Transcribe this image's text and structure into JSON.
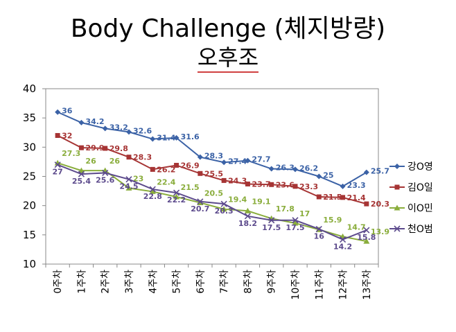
{
  "chart_data": {
    "type": "line",
    "title": "Body Challenge (체지방량)",
    "subtitle": "오후조",
    "categories": [
      "0주차",
      "1주차",
      "2주차",
      "3주차",
      "4주차",
      "5주차",
      "6주차",
      "7주차",
      "8주차",
      "9주차",
      "10주차",
      "11주차",
      "12주차",
      "13주차"
    ],
    "ylim": [
      10,
      40
    ],
    "yticks": [
      10,
      15,
      20,
      25,
      30,
      35,
      40
    ],
    "series": [
      {
        "name": "강O영",
        "color": "#3b62a6",
        "marker": "diamond",
        "values": [
          36,
          34.2,
          33.2,
          32.6,
          31.4,
          31.6,
          28.3,
          27.4,
          27.7,
          26.3,
          26.2,
          25,
          23.3,
          25.7
        ]
      },
      {
        "name": "김O일",
        "color": "#a63434",
        "marker": "square",
        "values": [
          32,
          29.9,
          29.8,
          28.3,
          26.2,
          26.9,
          25.5,
          24.3,
          23.7,
          23.6,
          23.3,
          21.5,
          21.4,
          20.3
        ]
      },
      {
        "name": "이O민",
        "color": "#8aad3c",
        "marker": "triangle",
        "values": [
          27.3,
          26,
          26,
          23,
          22.4,
          21.5,
          20.5,
          19.4,
          19.1,
          17.8,
          17,
          15.9,
          14.7,
          13.9
        ]
      },
      {
        "name": "천O범",
        "color": "#5c4a8c",
        "marker": "x",
        "values": [
          27,
          25.4,
          25.6,
          24.5,
          22.8,
          22.2,
          20.7,
          20.3,
          18.2,
          17.5,
          17.5,
          16,
          14.2,
          15.8
        ]
      }
    ]
  }
}
